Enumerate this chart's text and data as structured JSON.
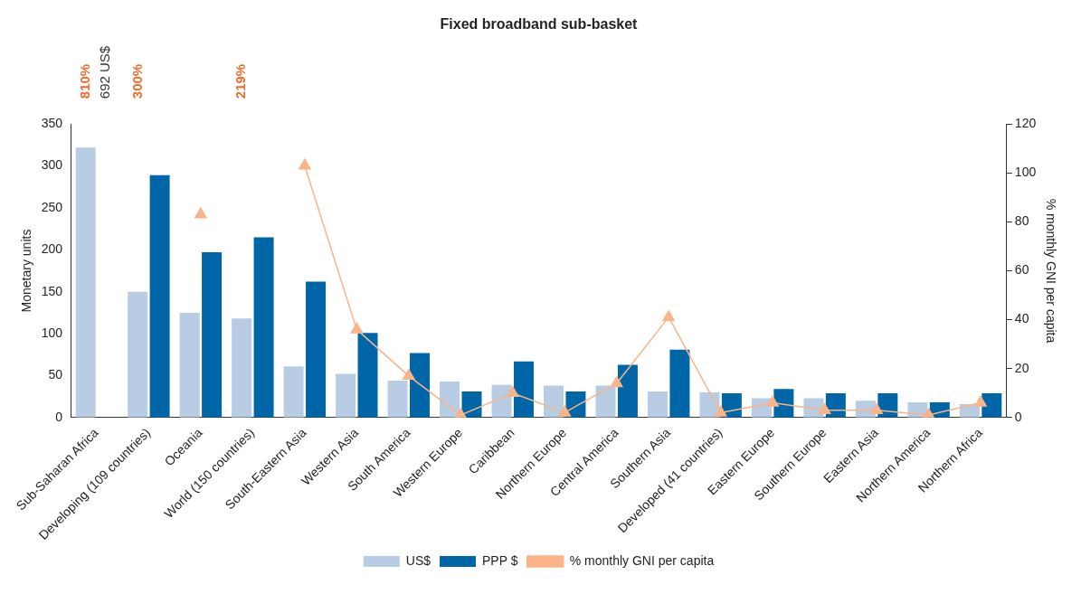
{
  "chart_data": {
    "type": "bar",
    "title": "Fixed broadband sub-basket",
    "categories": [
      "Sub-Saharan Africa",
      "Developing (109 countries)",
      "Oceania",
      "World (150 countries)",
      "South-Eastern Asia",
      "Western Asia",
      "South America",
      "Western Europe",
      "Caribbean",
      "Northern Europe",
      "Central America",
      "Southern Asia",
      "Developed (41 countries)",
      "Eastern Europe",
      "Southern Europe",
      "Eastern Asia",
      "Northern America",
      "Northern Africa"
    ],
    "series": [
      {
        "name": "US$",
        "color": "#b8cce4",
        "values": [
          322,
          150,
          125,
          118,
          61,
          52,
          44,
          43,
          39,
          38,
          38,
          31,
          30,
          23,
          23,
          20,
          18,
          16
        ]
      },
      {
        "name": "PPP $",
        "color": "#0066a8",
        "values": [
          null,
          289,
          197,
          215,
          162,
          101,
          77,
          31,
          67,
          31,
          63,
          81,
          29,
          34,
          29,
          29,
          18,
          29
        ]
      },
      {
        "name": "% monthly GNI per capita",
        "type": "line",
        "axis": "y2",
        "color": "#f9b48a",
        "values": [
          null,
          null,
          83,
          null,
          103,
          36,
          17,
          1,
          10,
          2,
          14,
          41,
          2,
          6,
          3,
          3,
          1,
          6
        ]
      }
    ],
    "annotations": [
      "810%",
      "692 US$",
      "300%",
      "219%"
    ],
    "ylabel": "Monetary units",
    "y2label": "% monthly GNI per capita",
    "ylim": [
      0,
      350
    ],
    "yticks": [
      0,
      50,
      100,
      150,
      200,
      250,
      300,
      350
    ],
    "y2lim": [
      0,
      120
    ],
    "y2ticks": [
      0,
      20,
      40,
      60,
      80,
      100,
      120
    ],
    "marker": "triangle",
    "grid": false,
    "legend": "bottom"
  }
}
